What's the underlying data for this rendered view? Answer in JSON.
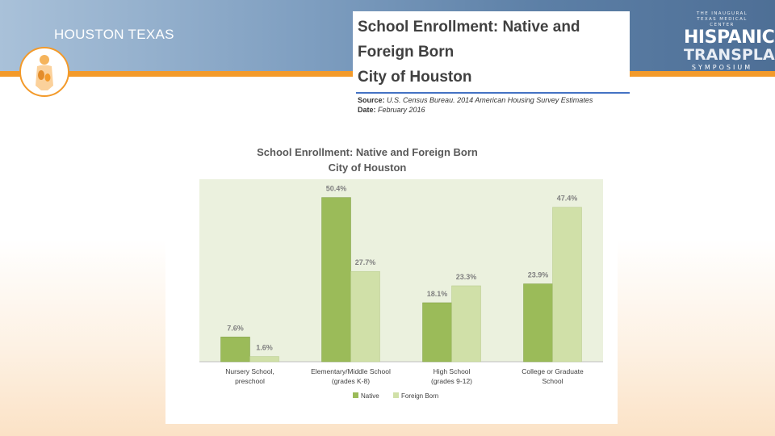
{
  "presenter_title": "HOUSTON TEXAS",
  "symposium": {
    "line1": "THE INAUGURAL",
    "line2": "TEXAS MEDICAL CENTER",
    "line3": "HISPANIC",
    "line4": "TRANSPLANT",
    "line5": "SYMPOSIUM"
  },
  "header": {
    "title_line1": "School Enrollment: Native and",
    "title_line2": "Foreign Born",
    "title_line3": "City of Houston",
    "source_label": "Source:",
    "source_text": "U.S. Census Bureau. 2014 American Housing Survey Estimates",
    "date_label": "Date:",
    "date_text": "February 2016"
  },
  "colors": {
    "native": "#9bbb59",
    "foreign_born": "#d0e0a8",
    "plot_bg": "#ebf1de",
    "title_text": "#595959",
    "accent_orange": "#f39a2a"
  },
  "chart_data": {
    "type": "bar",
    "title_line1": "School Enrollment: Native and Foreign Born",
    "title_line2": "City of Houston",
    "categories": [
      [
        "Nursery School,",
        "preschool"
      ],
      [
        "Elementary/Middle School",
        "(grades K-8)"
      ],
      [
        "High School",
        "(grades 9-12)"
      ],
      [
        "College or Graduate",
        "School"
      ]
    ],
    "series": [
      {
        "name": "Native",
        "values": [
          7.6,
          50.4,
          18.1,
          23.9
        ],
        "labels": [
          "7.6%",
          "50.4%",
          "18.1%",
          "23.9%"
        ]
      },
      {
        "name": "Foreign Born",
        "values": [
          1.6,
          27.7,
          23.3,
          47.4
        ],
        "labels": [
          "1.6%",
          "27.7%",
          "23.3%",
          "47.4%"
        ]
      }
    ],
    "ylim": [
      0,
      56
    ],
    "grid": false,
    "legend_position": "bottom"
  }
}
